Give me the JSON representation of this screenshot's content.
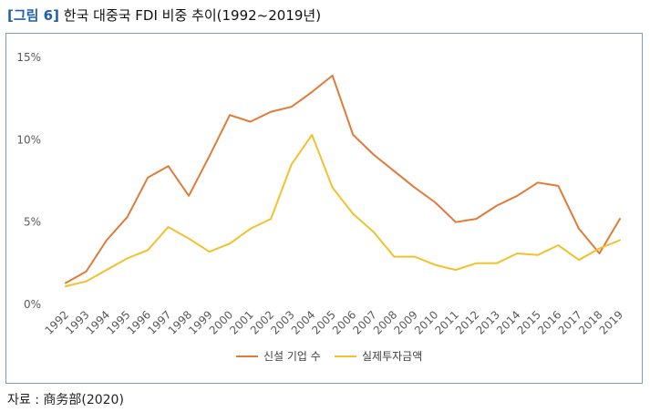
{
  "figure": {
    "tag": "[그림 6]",
    "title": "한국 대중국 FDI 비중 추이(1992~2019년)",
    "source": "자료 : 商务部(2020)"
  },
  "chart_data": {
    "type": "line",
    "ylim": [
      0,
      15
    ],
    "yticks": [
      "0%",
      "5%",
      "10%",
      "15%"
    ],
    "ytick_values": [
      0,
      5,
      10,
      15
    ],
    "grid": false,
    "legend_position": "bottom",
    "categories": [
      "1992",
      "1993",
      "1994",
      "1995",
      "1996",
      "1997",
      "1998",
      "1999",
      "2000",
      "2001",
      "2002",
      "2003",
      "2004",
      "2005",
      "2006",
      "2007",
      "2008",
      "2009",
      "2010",
      "2011",
      "2012",
      "2013",
      "2014",
      "2015",
      "2016",
      "2017",
      "2018",
      "2019"
    ],
    "series": [
      {
        "name": "신설 기업 수",
        "color": "#e07b39",
        "values": [
          1.3,
          2.0,
          3.9,
          5.3,
          7.7,
          8.4,
          6.6,
          9.0,
          11.5,
          11.1,
          11.7,
          12.0,
          12.9,
          13.9,
          10.3,
          9.1,
          8.1,
          7.1,
          6.2,
          5.0,
          5.2,
          6.0,
          6.6,
          7.4,
          7.2,
          4.6,
          3.1,
          5.2
        ]
      },
      {
        "name": "실제투자금액",
        "color": "#f2c12e",
        "values": [
          1.1,
          1.4,
          2.1,
          2.8,
          3.3,
          4.7,
          4.0,
          3.2,
          3.7,
          4.6,
          5.2,
          8.5,
          10.3,
          7.1,
          5.5,
          4.4,
          2.9,
          2.9,
          2.4,
          2.1,
          2.5,
          2.5,
          3.1,
          3.0,
          3.6,
          2.7,
          3.4,
          3.9
        ]
      }
    ]
  }
}
